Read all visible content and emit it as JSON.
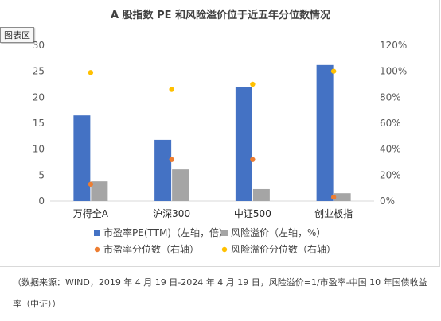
{
  "chart_data": {
    "type": "bar",
    "title": "A 股指数 PE 和风险溢价位于近五年分位数情况",
    "categories": [
      "万得全A",
      "沪深300",
      "中证500",
      "创业板指"
    ],
    "series": [
      {
        "name": "市盈率PE(TTM)（左轴，倍）",
        "kind": "bar",
        "axis": "left",
        "color": "#4472c4",
        "values": [
          16.5,
          11.8,
          22.0,
          26.2
        ]
      },
      {
        "name": "风险溢价（左轴，%）",
        "kind": "bar",
        "axis": "left",
        "color": "#a5a5a5",
        "values": [
          3.8,
          6.1,
          2.3,
          1.5
        ]
      },
      {
        "name": "市盈率分位数（右轴）",
        "kind": "dot",
        "axis": "right",
        "color": "#ed7d31",
        "values": [
          13,
          32,
          32,
          3
        ]
      },
      {
        "name": "风险溢价分位数（右轴）",
        "kind": "dot",
        "axis": "right",
        "color": "#ffc000",
        "values": [
          99,
          86,
          90,
          100
        ]
      }
    ],
    "ylim_left": [
      0,
      30
    ],
    "yticks_left": [
      "0",
      "5",
      "10",
      "15",
      "20",
      "25",
      "30"
    ],
    "ylim_right": [
      0,
      120
    ],
    "yticks_right": [
      "0%",
      "20%",
      "40%",
      "60%",
      "80%",
      "100%",
      "120%"
    ],
    "grid": false,
    "legend_position": "bottom"
  },
  "chart_area_tag": "图表区",
  "source_note": "（数据来源：WIND，2019 年 4 月 19 日-2024 年 4 月 19 日，风险溢价=1/市盈率-中国 10 年国债收益率（中证））"
}
